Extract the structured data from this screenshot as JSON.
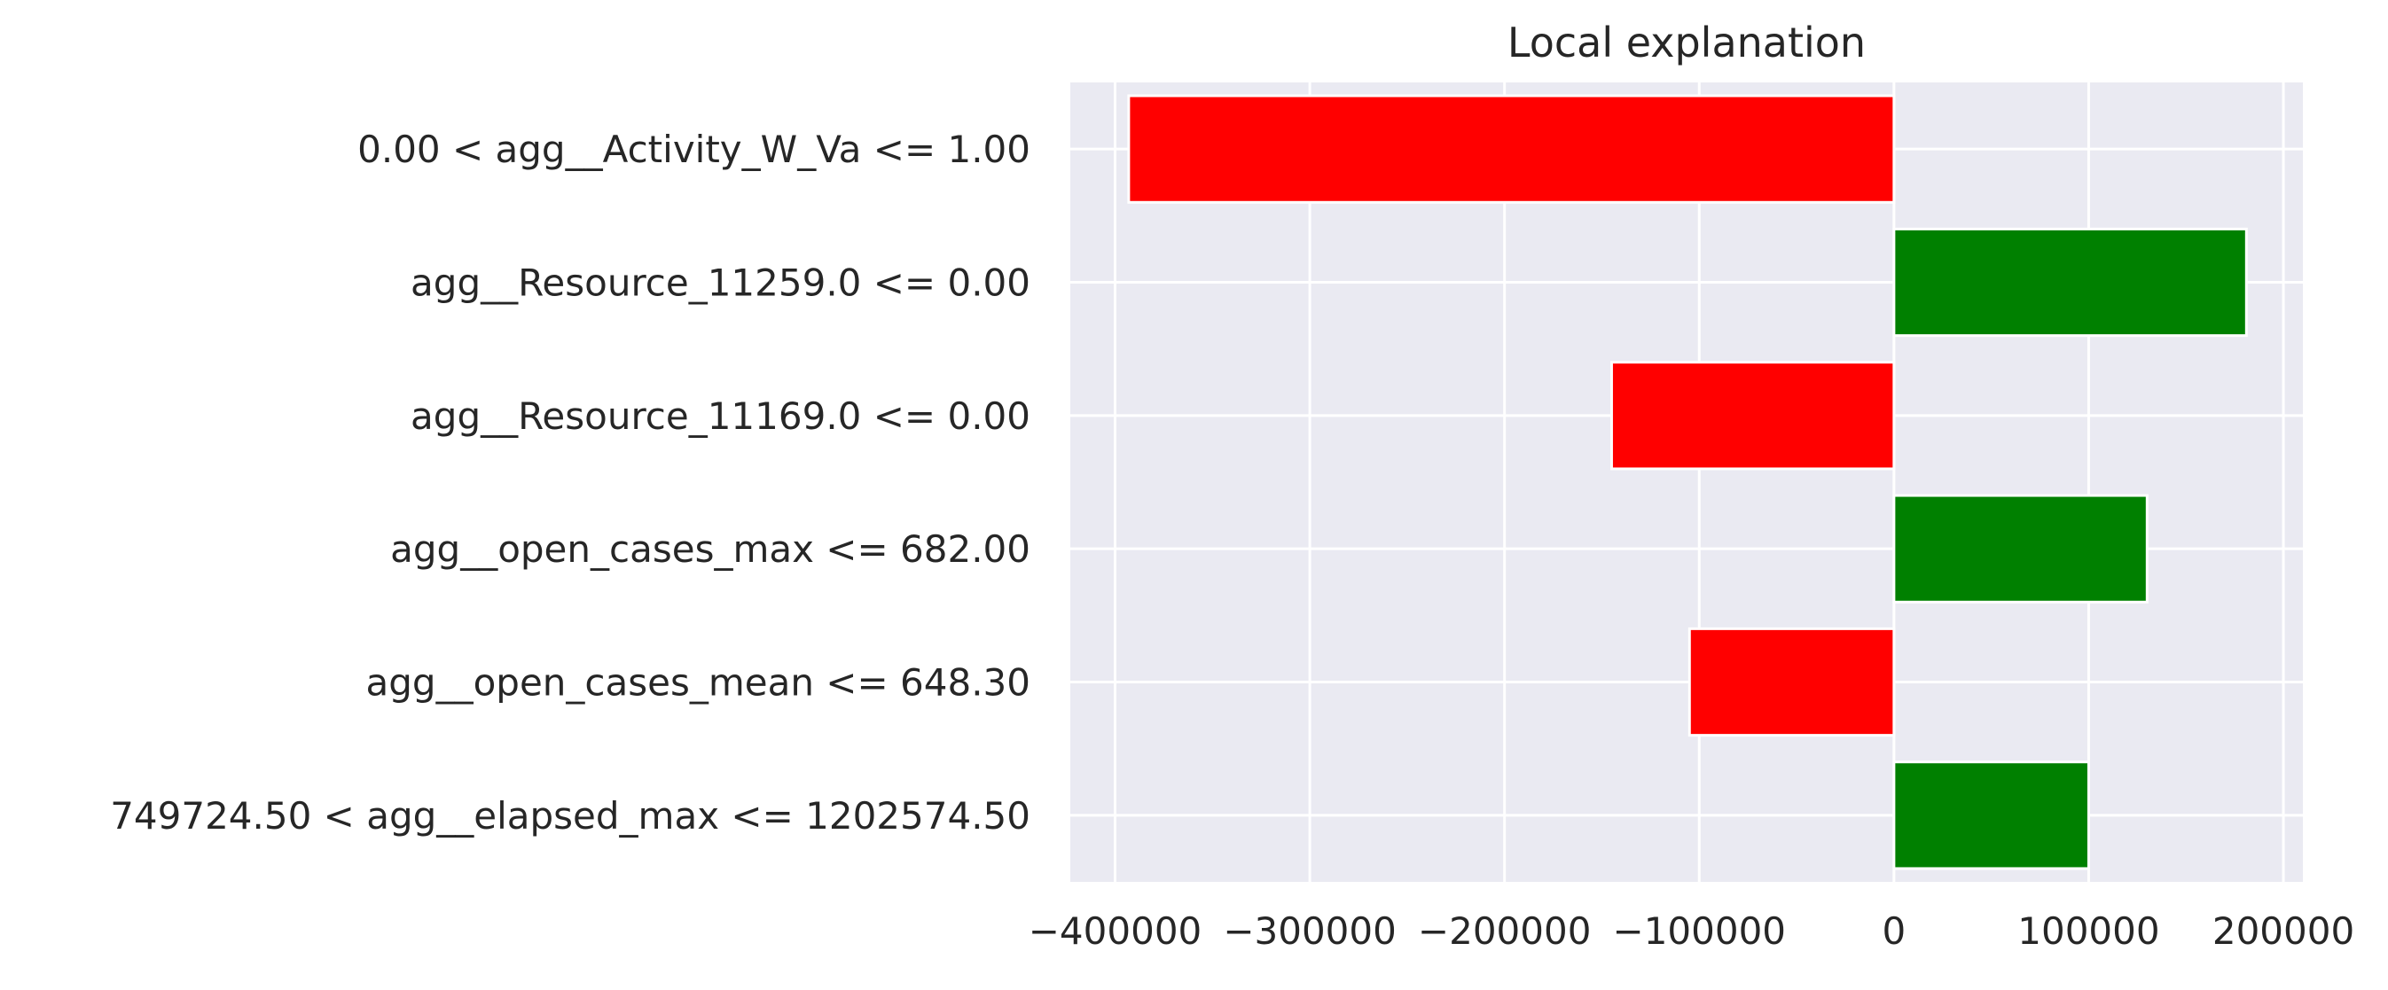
{
  "chart_data": {
    "type": "bar",
    "orientation": "horizontal",
    "title": "Local explanation",
    "xlabel": "",
    "ylabel": "",
    "categories": [
      "0.00 < agg__Activity_W_Va <= 1.00",
      "agg__Resource_11259.0 <= 0.00",
      "agg__Resource_11169.0 <= 0.00",
      "agg__open_cases_max <= 682.00",
      "agg__open_cases_mean <= 648.30",
      "749724.50 < agg__elapsed_max <= 1202574.50"
    ],
    "values": [
      -393000,
      181000,
      -145000,
      130000,
      -105000,
      100000
    ],
    "xlim": [
      -423000,
      210000
    ],
    "xticks": [
      -400000,
      -300000,
      -200000,
      -100000,
      0,
      100000,
      200000
    ],
    "xtick_labels": [
      "−400000",
      "−300000",
      "−200000",
      "−100000",
      "0",
      "100000",
      "200000"
    ],
    "grid": true,
    "legend": "none",
    "colors": {
      "positive": "#008000",
      "negative": "#ff0000",
      "background": "#eaeaf2",
      "grid": "#ffffff"
    }
  }
}
